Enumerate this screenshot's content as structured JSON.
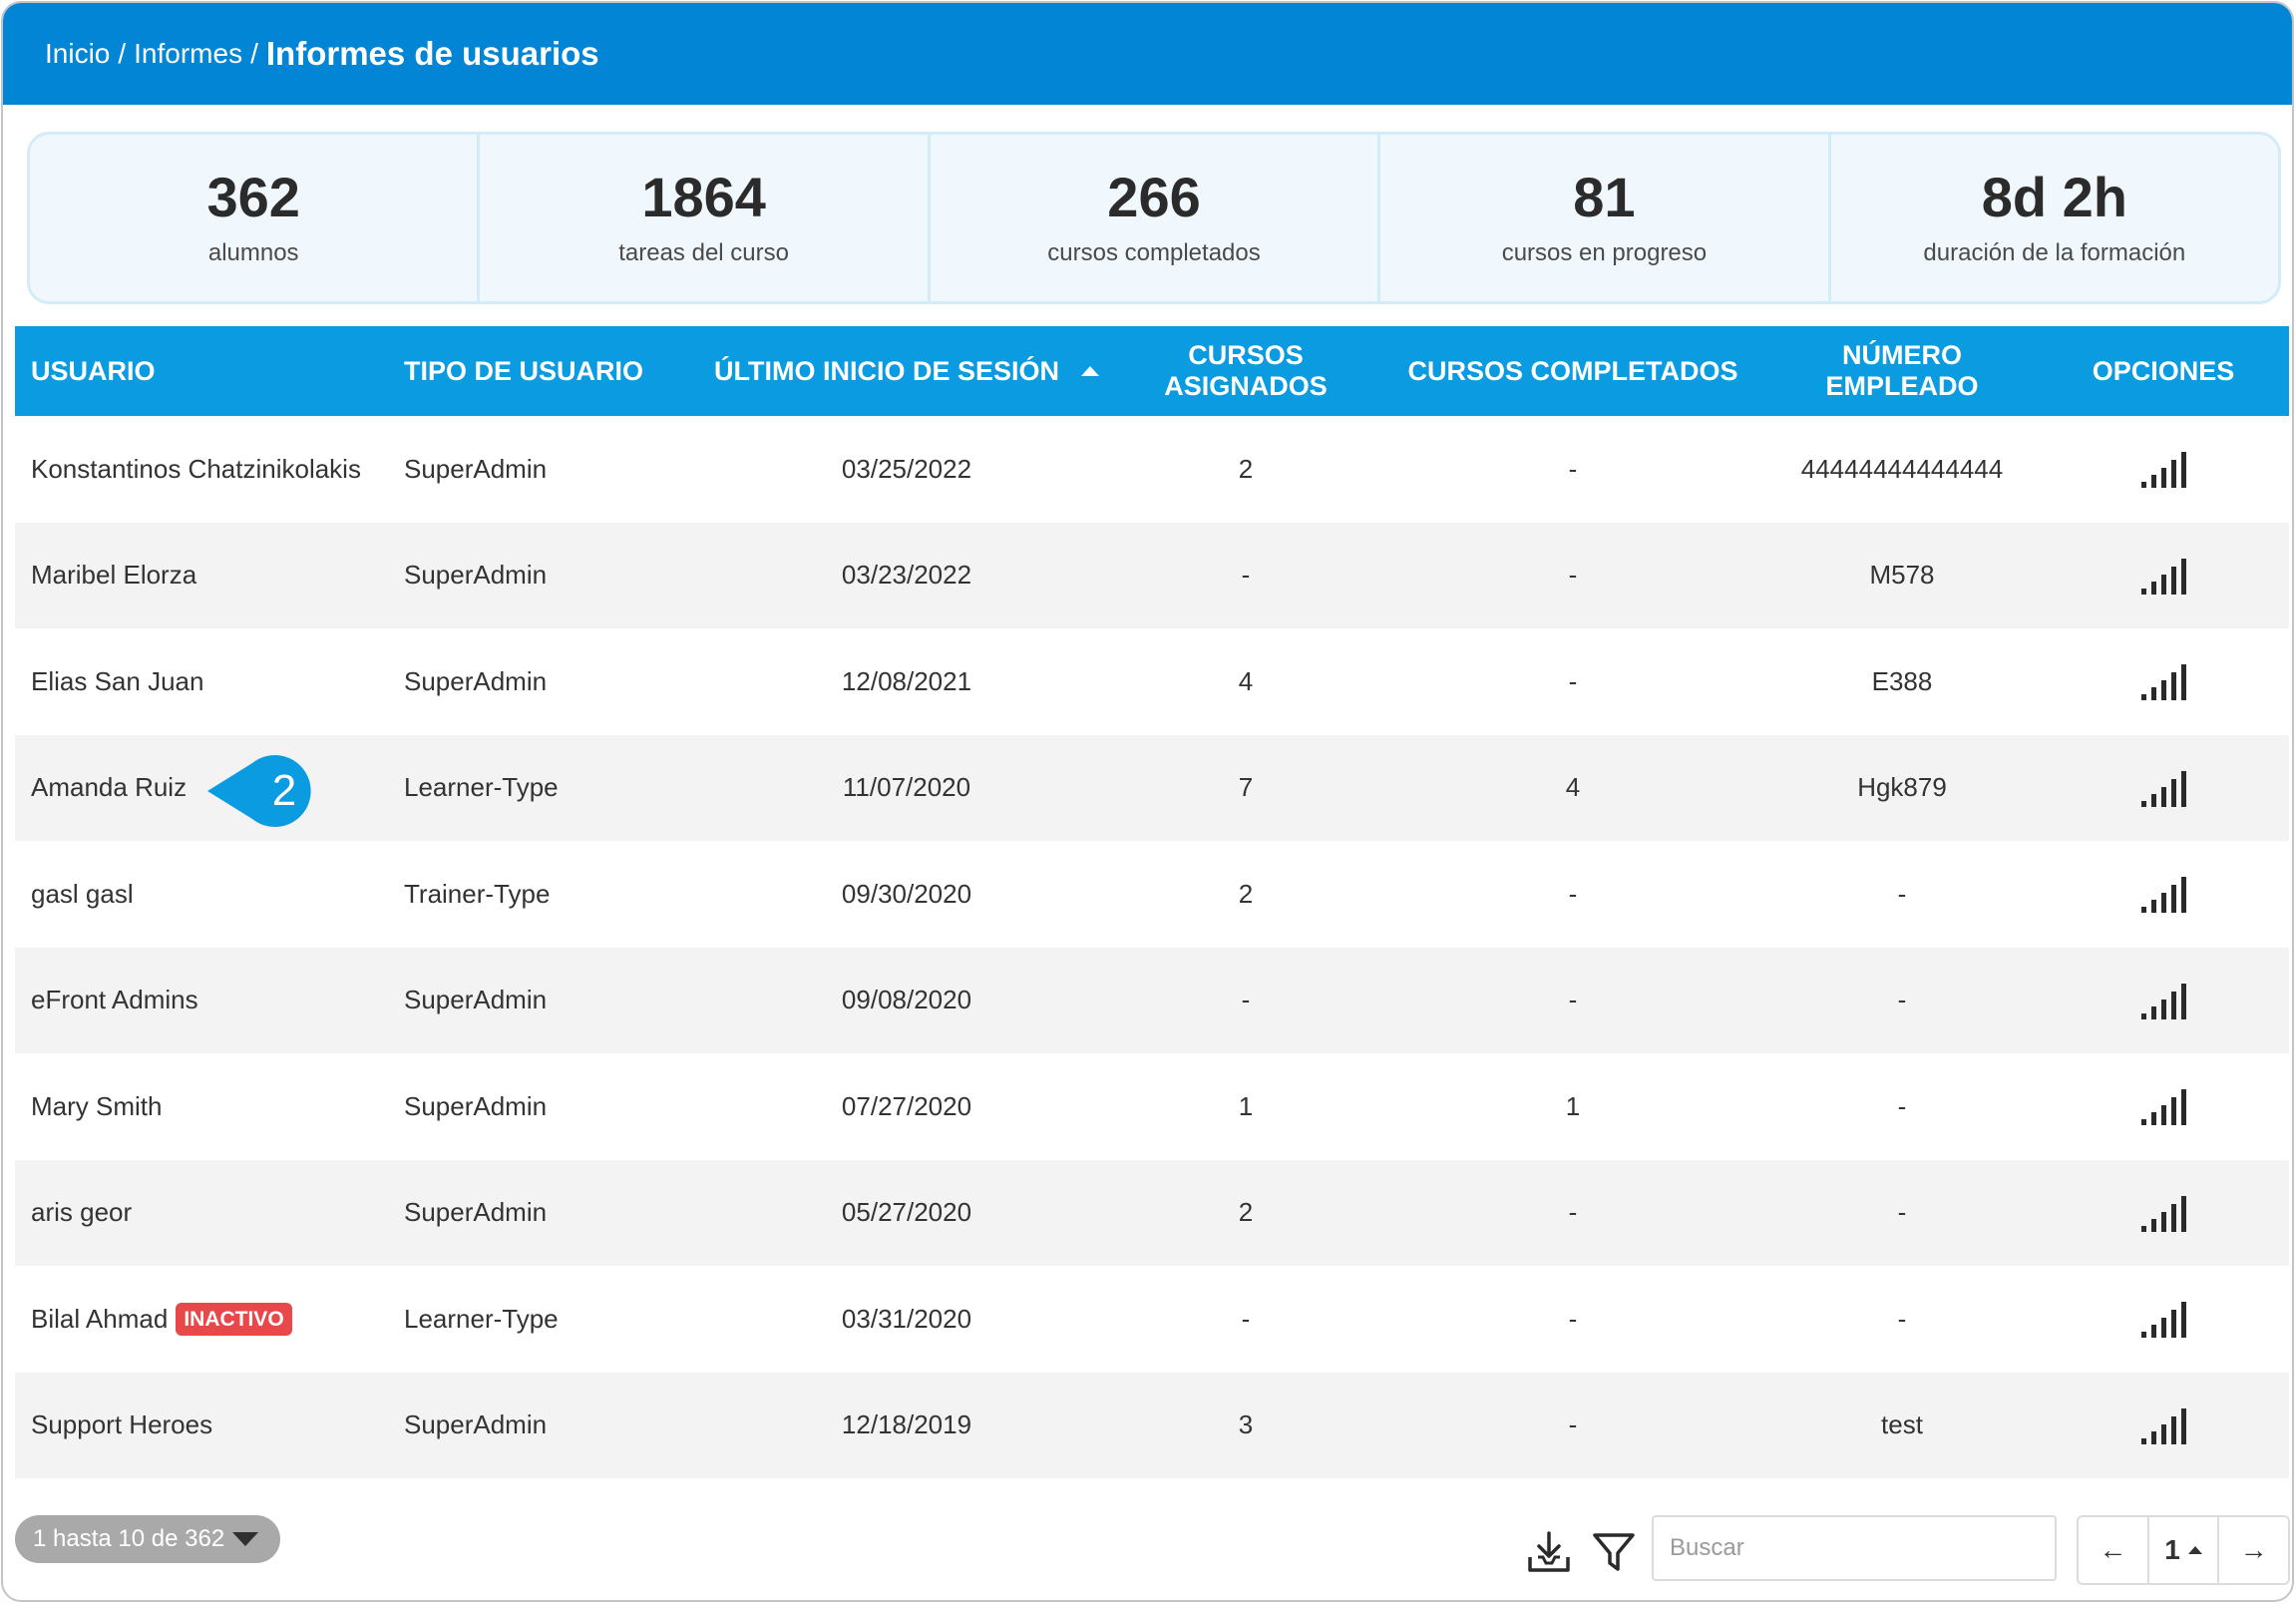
{
  "breadcrumb": {
    "home": "Inicio",
    "reports": "Informes",
    "current": "Informes de usuarios",
    "separator": "/"
  },
  "stats": [
    {
      "value": "362",
      "label": "alumnos"
    },
    {
      "value": "1864",
      "label": "tareas del curso"
    },
    {
      "value": "266",
      "label": "cursos completados"
    },
    {
      "value": "81",
      "label": "cursos en progreso"
    },
    {
      "value": "8d 2h",
      "label": "duración de la formación"
    }
  ],
  "table": {
    "headers": {
      "user": "USUARIO",
      "user_type": "TIPO DE USUARIO",
      "last_login": "ÚLTIMO INICIO DE SESIÓN",
      "assigned": "CURSOS ASIGNADOS",
      "completed": "CURSOS COMPLETADOS",
      "employee_no": "NÚMERO EMPLEADO",
      "options": "OPCIONES"
    },
    "rows": [
      {
        "user": "Konstantinos Chatzinikolakis",
        "badge": "",
        "type": "SuperAdmin",
        "last_login": "03/25/2022",
        "assigned": "2",
        "completed": "-",
        "employee_no": "44444444444444"
      },
      {
        "user": "Maribel Elorza",
        "badge": "",
        "type": "SuperAdmin",
        "last_login": "03/23/2022",
        "assigned": "-",
        "completed": "-",
        "employee_no": "M578"
      },
      {
        "user": "Elias San Juan",
        "badge": "",
        "type": "SuperAdmin",
        "last_login": "12/08/2021",
        "assigned": "4",
        "completed": "-",
        "employee_no": "E388"
      },
      {
        "user": "Amanda Ruiz",
        "badge": "",
        "type": "Learner-Type",
        "last_login": "11/07/2020",
        "assigned": "7",
        "completed": "4",
        "employee_no": "Hgk879"
      },
      {
        "user": "gasl gasl",
        "badge": "",
        "type": "Trainer-Type",
        "last_login": "09/30/2020",
        "assigned": "2",
        "completed": "-",
        "employee_no": "-"
      },
      {
        "user": "eFront Admins",
        "badge": "",
        "type": "SuperAdmin",
        "last_login": "09/08/2020",
        "assigned": "-",
        "completed": "-",
        "employee_no": "-"
      },
      {
        "user": "Mary Smith",
        "badge": "",
        "type": "SuperAdmin",
        "last_login": "07/27/2020",
        "assigned": "1",
        "completed": "1",
        "employee_no": "-"
      },
      {
        "user": "aris geor",
        "badge": "",
        "type": "SuperAdmin",
        "last_login": "05/27/2020",
        "assigned": "2",
        "completed": "-",
        "employee_no": "-"
      },
      {
        "user": "Bilal Ahmad",
        "badge": "INACTIVO",
        "type": "Learner-Type",
        "last_login": "03/31/2020",
        "assigned": "-",
        "completed": "-",
        "employee_no": "-"
      },
      {
        "user": "Support Heroes",
        "badge": "",
        "type": "SuperAdmin",
        "last_login": "12/18/2019",
        "assigned": "3",
        "completed": "-",
        "employee_no": "test"
      }
    ]
  },
  "callout": {
    "number": "2"
  },
  "footer": {
    "range_label": "1 hasta 10 de 362",
    "search_placeholder": "Buscar",
    "prev": "←",
    "page": "1",
    "next": "→"
  },
  "icons": {
    "options": "signal-bars-icon",
    "download": "download-icon",
    "filter": "filter-icon"
  },
  "colors": {
    "header": "#0385d6",
    "table_header": "#0a9be0",
    "badge_inactive": "#e8484a",
    "callout": "#0a9be0"
  }
}
